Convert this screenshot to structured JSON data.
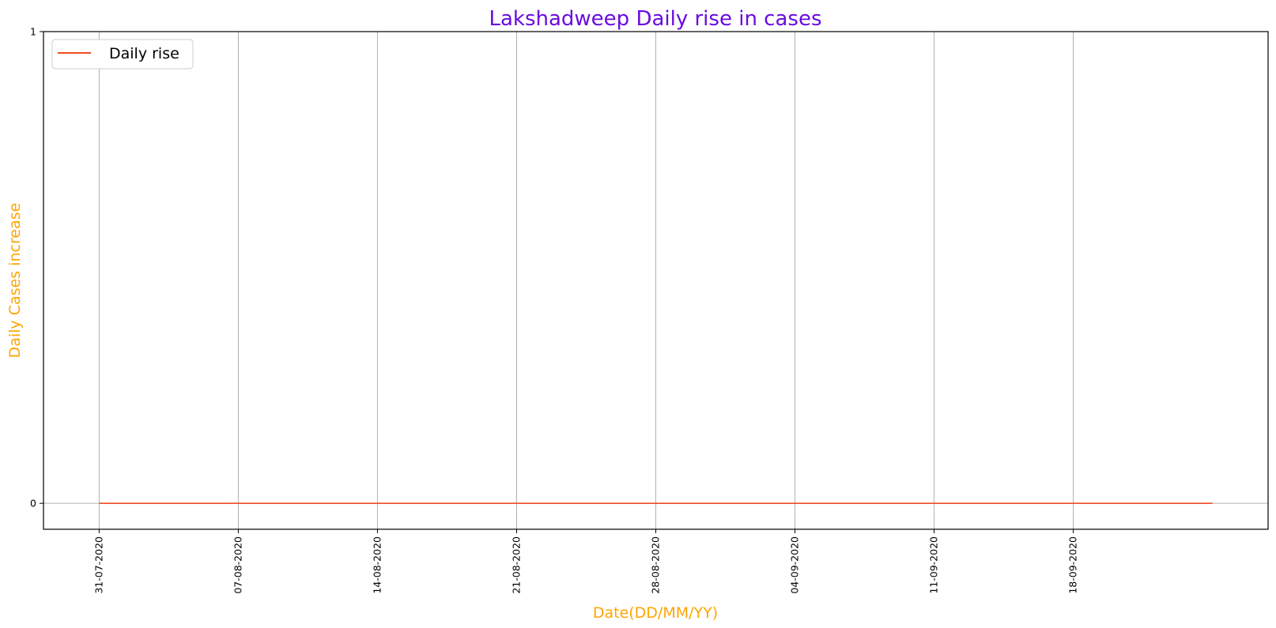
{
  "chart_data": {
    "type": "line",
    "title": "Lakshadweep Daily rise in cases",
    "xlabel": "Date(DD/MM/YY)",
    "ylabel": "Daily Cases increase",
    "x_start": "31-07-2020",
    "x_end": "25-09-2020",
    "xticks": [
      "31-07-2020",
      "07-08-2020",
      "14-08-2020",
      "21-08-2020",
      "28-08-2020",
      "04-09-2020",
      "11-09-2020",
      "18-09-2020"
    ],
    "yticks": [
      "0",
      "1"
    ],
    "ylim": [
      -0.055,
      1
    ],
    "series": [
      {
        "name": "Daily rise",
        "color": "#ee4e22",
        "constant_value": 0
      }
    ],
    "grid": true,
    "legend_position": "upper-left",
    "colors": {
      "title": "#6a0be0",
      "axis_labels": "#ffa500",
      "grid": "#b0b0b0"
    }
  }
}
